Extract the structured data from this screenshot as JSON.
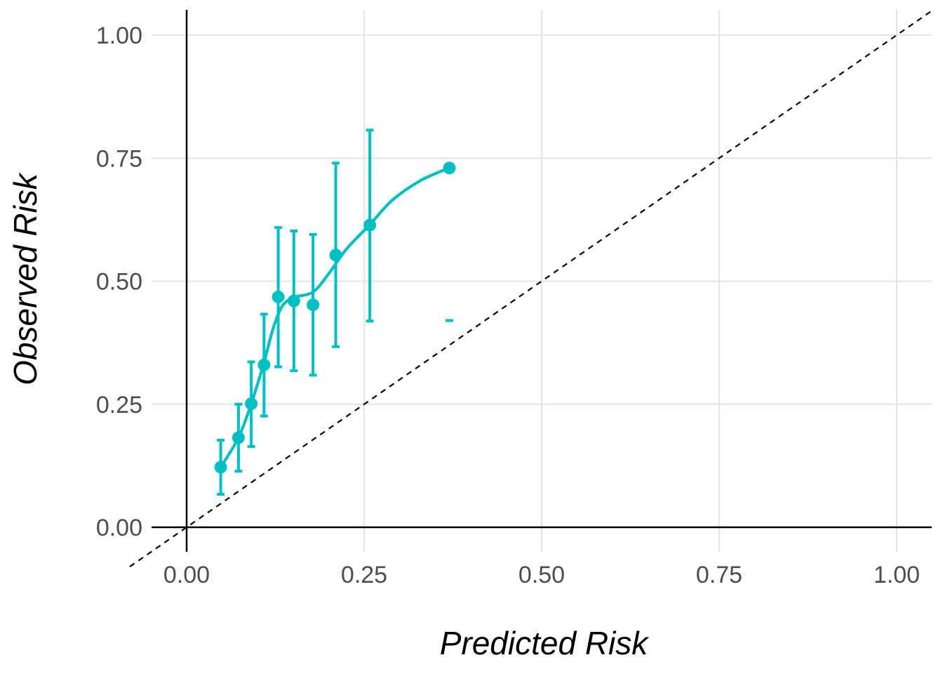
{
  "chart_data": {
    "type": "scatter",
    "title": "",
    "xlabel": "Predicted Risk",
    "ylabel": "Observed Risk",
    "xlim": [
      -0.08,
      1.05
    ],
    "ylim": [
      -0.08,
      1.05
    ],
    "grid": true,
    "legend": "none",
    "x_ticks": [
      "0.00",
      "0.25",
      "0.50",
      "0.75",
      "1.00"
    ],
    "y_ticks": [
      "0.00",
      "0.25",
      "0.50",
      "0.75",
      "1.00"
    ],
    "reference_line": {
      "type": "diagonal",
      "style": "dashed",
      "slope": 1,
      "intercept": 0
    },
    "series": [
      {
        "color": "#00BFC4",
        "points": [
          {
            "x": 0.048,
            "y": 0.122,
            "lower": 0.067,
            "upper": 0.177
          },
          {
            "x": 0.073,
            "y": 0.182,
            "lower": 0.114,
            "upper": 0.25
          },
          {
            "x": 0.091,
            "y": 0.251,
            "lower": 0.164,
            "upper": 0.336
          },
          {
            "x": 0.109,
            "y": 0.33,
            "lower": 0.226,
            "upper": 0.433
          },
          {
            "x": 0.129,
            "y": 0.468,
            "lower": 0.326,
            "upper": 0.609
          },
          {
            "x": 0.151,
            "y": 0.46,
            "lower": 0.318,
            "upper": 0.602
          },
          {
            "x": 0.178,
            "y": 0.452,
            "lower": 0.309,
            "upper": 0.595
          },
          {
            "x": 0.21,
            "y": 0.553,
            "lower": 0.367,
            "upper": 0.74
          },
          {
            "x": 0.258,
            "y": 0.614,
            "lower": 0.419,
            "upper": 0.807
          },
          {
            "x": 0.37,
            "y": 0.73,
            "lower": 0.42,
            "upper": 0.42
          }
        ],
        "smooth_curve": [
          {
            "x": 0.048,
            "y": 0.122
          },
          {
            "x": 0.073,
            "y": 0.182
          },
          {
            "x": 0.091,
            "y": 0.251
          },
          {
            "x": 0.109,
            "y": 0.335
          },
          {
            "x": 0.122,
            "y": 0.405
          },
          {
            "x": 0.135,
            "y": 0.45
          },
          {
            "x": 0.151,
            "y": 0.467
          },
          {
            "x": 0.178,
            "y": 0.478
          },
          {
            "x": 0.2,
            "y": 0.515
          },
          {
            "x": 0.225,
            "y": 0.565
          },
          {
            "x": 0.258,
            "y": 0.615
          },
          {
            "x": 0.29,
            "y": 0.665
          },
          {
            "x": 0.33,
            "y": 0.705
          },
          {
            "x": 0.37,
            "y": 0.73
          }
        ]
      }
    ]
  }
}
